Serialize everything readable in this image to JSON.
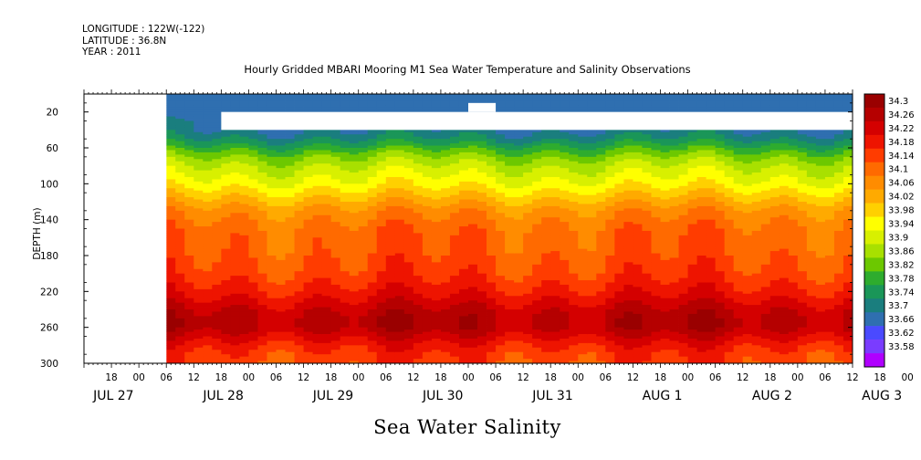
{
  "header": {
    "longitude": "LONGITUDE : 122W(-122)",
    "latitude": "LATITUDE : 36.8N",
    "year": "YEAR : 2011"
  },
  "chart_data": {
    "type": "heatmap",
    "title": "Hourly Gridded MBARI Mooring M1 Sea Water Temperature and Salinity Observations",
    "xlabel": "Sea Water Salinity",
    "ylabel": "DEPTH (m)",
    "ylim": [
      300,
      0
    ],
    "y_ticks": [
      20,
      60,
      100,
      140,
      180,
      220,
      260,
      300
    ],
    "x_hour_ticks": [
      "18",
      "00",
      "06",
      "12",
      "18",
      "00",
      "06",
      "12",
      "18",
      "00",
      "06",
      "12",
      "18",
      "00",
      "06",
      "12",
      "18",
      "00",
      "06",
      "12",
      "18",
      "00",
      "06",
      "12",
      "18",
      "00",
      "06",
      "12",
      "18",
      "00",
      "06",
      "12",
      "18",
      "00",
      "06",
      "12"
    ],
    "x_date_labels": [
      "JUL 27",
      "JUL 28",
      "JUL 29",
      "JUL 30",
      "JUL 31",
      "AUG  1",
      "AUG  2",
      "AUG  3"
    ],
    "x_range_hours": [
      -12,
      156
    ],
    "data_start_hours": 6,
    "depth_levels": [
      10,
      20,
      30,
      40,
      50,
      60,
      70,
      80,
      90,
      100,
      110,
      120,
      130,
      140,
      150,
      160,
      170,
      180,
      190,
      200,
      210,
      220,
      230,
      240,
      250,
      260,
      270,
      280,
      290,
      300
    ],
    "salinity_profile": [
      33.68,
      33.68,
      33.7,
      33.7,
      33.74,
      33.8,
      33.86,
      33.9,
      33.93,
      33.96,
      34.0,
      34.04,
      34.08,
      34.1,
      34.12,
      34.13,
      34.13,
      34.14,
      34.15,
      34.16,
      34.18,
      34.2,
      34.23,
      34.26,
      34.28,
      34.28,
      34.24,
      34.2,
      34.17,
      34.16
    ],
    "missing_regions": [
      {
        "x_hours": [
          -12,
          6
        ],
        "depth": [
          0,
          300
        ]
      },
      {
        "x_hours": [
          18,
          156
        ],
        "depth": [
          20,
          40
        ]
      },
      {
        "x_hours": [
          72,
          78
        ],
        "depth": [
          10,
          20
        ]
      }
    ],
    "colorbar": {
      "levels": [
        "34.3",
        "34.26",
        "34.22",
        "34.18",
        "34.14",
        "34.1",
        "34.06",
        "34.02",
        "33.98",
        "33.94",
        "33.9",
        "33.86",
        "33.82",
        "33.78",
        "33.74",
        "33.7",
        "33.66",
        "33.62",
        "33.58"
      ],
      "colors": [
        "#9a0000",
        "#b50000",
        "#d40000",
        "#ee1400",
        "#ff3c00",
        "#ff6a00",
        "#ff8c00",
        "#ffaa00",
        "#ffd000",
        "#ffff00",
        "#d8f000",
        "#a8e000",
        "#6cc800",
        "#2eac2e",
        "#1a9658",
        "#1a7e7e",
        "#2f6fb0",
        "#4a4aff",
        "#7a3cff",
        "#b000ff"
      ]
    }
  }
}
